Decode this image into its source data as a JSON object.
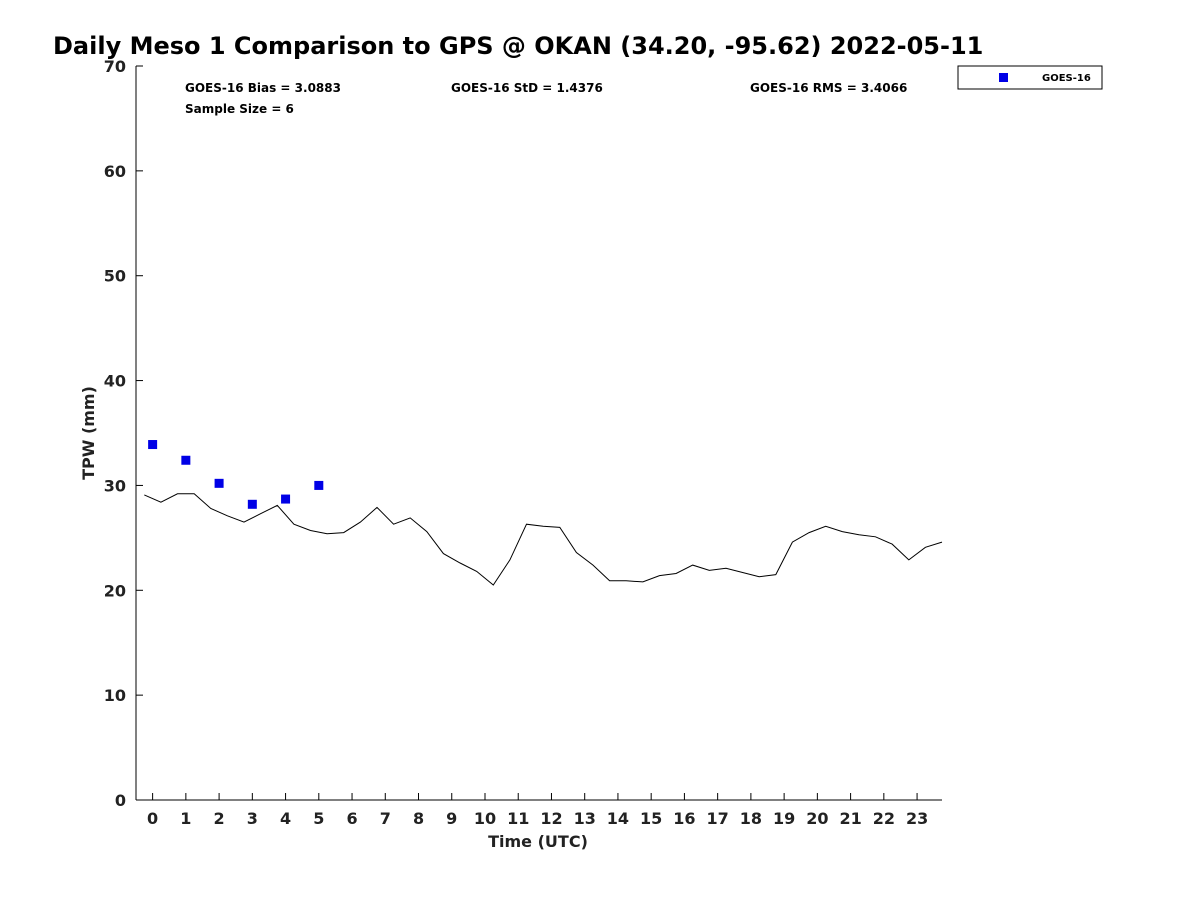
{
  "chart_data": {
    "type": "scatter",
    "title": "Daily Meso 1 Comparison to GPS @ OKAN (34.20, -95.62) 2022-05-11",
    "xlabel": "Time (UTC)",
    "ylabel": "TPW (mm)",
    "xlim": [
      -0.5,
      23.75
    ],
    "ylim": [
      0,
      70
    ],
    "x_ticks": [
      "0",
      "1",
      "2",
      "3",
      "4",
      "5",
      "6",
      "7",
      "8",
      "9",
      "10",
      "11",
      "12",
      "13",
      "14",
      "15",
      "16",
      "17",
      "18",
      "19",
      "20",
      "21",
      "22",
      "23"
    ],
    "y_ticks": [
      "0",
      "10",
      "20",
      "30",
      "40",
      "50",
      "60",
      "70"
    ],
    "grid": false,
    "legend_position": "top-right, outside plot",
    "stats": [
      "GOES-16 Bias = 3.0883",
      "GOES-16 StD = 1.4376",
      "GOES-16 RMS = 3.4066",
      "Sample Size = 6"
    ],
    "series": [
      {
        "name": "GOES-16",
        "style": "markers",
        "color": "#0000e6",
        "x": [
          0,
          1,
          2,
          3,
          4,
          5
        ],
        "y": [
          33.9,
          32.4,
          30.2,
          28.2,
          28.7,
          30.0
        ]
      },
      {
        "style": "line",
        "color": "#000000",
        "x": [
          -0.25,
          0.25,
          0.75,
          1.25,
          1.75,
          2.25,
          2.75,
          3.25,
          3.75,
          4.25,
          4.75,
          5.25,
          5.75,
          6.25,
          6.75,
          7.25,
          7.75,
          8.25,
          8.75,
          9.25,
          9.75,
          10.25,
          10.75,
          11.25,
          11.75,
          12.25,
          12.75,
          13.25,
          13.75,
          14.25,
          14.75,
          15.25,
          15.75,
          16.25,
          16.75,
          17.25,
          17.75,
          18.25,
          18.75,
          19.25,
          19.75,
          20.25,
          20.75,
          21.25,
          21.75,
          22.25,
          22.75,
          23.25,
          23.75
        ],
        "y": [
          29.1,
          28.4,
          29.2,
          29.2,
          27.8,
          27.1,
          26.5,
          27.3,
          28.1,
          26.3,
          25.7,
          25.4,
          25.5,
          26.5,
          27.9,
          26.3,
          26.9,
          25.6,
          23.5,
          22.6,
          21.8,
          20.5,
          22.9,
          26.3,
          26.1,
          26.0,
          23.6,
          22.4,
          20.9,
          20.9,
          20.8,
          21.4,
          21.6,
          22.4,
          21.9,
          22.1,
          21.7,
          21.3,
          21.5,
          24.6,
          25.5,
          26.1,
          25.6,
          25.3,
          25.1,
          24.4,
          22.9,
          24.1,
          24.6
        ]
      }
    ]
  }
}
